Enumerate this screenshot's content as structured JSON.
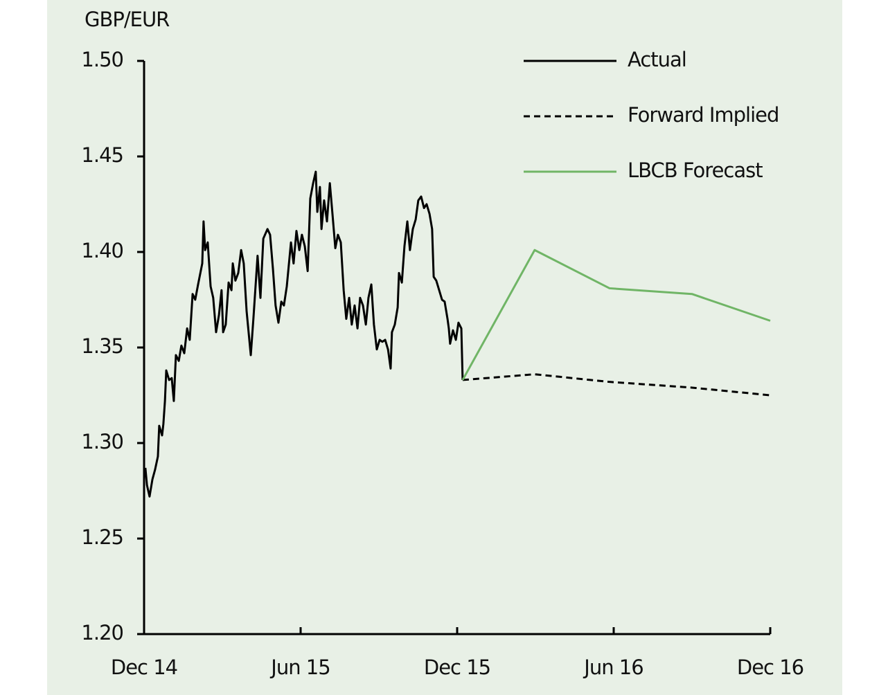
{
  "chart_data": {
    "type": "line",
    "y_label": "GBP/EUR",
    "ylim": [
      1.2,
      1.5
    ],
    "yticks": [
      {
        "value": 1.2,
        "label": "1.20"
      },
      {
        "value": 1.25,
        "label": "1.25"
      },
      {
        "value": 1.3,
        "label": "1.30"
      },
      {
        "value": 1.35,
        "label": "1.35"
      },
      {
        "value": 1.4,
        "label": "1.40"
      },
      {
        "value": 1.45,
        "label": "1.45"
      },
      {
        "value": 1.5,
        "label": "1.50"
      }
    ],
    "xlim": [
      0,
      24
    ],
    "xticks": [
      {
        "value": 0,
        "label": "Dec 14"
      },
      {
        "value": 6,
        "label": "Jun 15"
      },
      {
        "value": 12,
        "label": "Dec 15"
      },
      {
        "value": 18,
        "label": "Jun 16"
      },
      {
        "value": 24,
        "label": "Dec 16"
      }
    ],
    "legend": "top-right",
    "series": [
      {
        "name": "Actual",
        "color": "#000000",
        "dash": false,
        "x": [
          0.05,
          0.11,
          0.21,
          0.32,
          0.42,
          0.53,
          0.58,
          0.69,
          0.74,
          0.8,
          0.85,
          0.96,
          1.06,
          1.14,
          1.22,
          1.33,
          1.43,
          1.54,
          1.65,
          1.75,
          1.86,
          1.96,
          2.07,
          2.23,
          2.28,
          2.34,
          2.44,
          2.55,
          2.65,
          2.76,
          2.87,
          2.97,
          3.03,
          3.13,
          3.24,
          3.35,
          3.4,
          3.5,
          3.61,
          3.72,
          3.82,
          3.93,
          4.09,
          4.19,
          4.35,
          4.46,
          4.57,
          4.73,
          4.83,
          4.94,
          5.04,
          5.15,
          5.26,
          5.36,
          5.47,
          5.63,
          5.73,
          5.84,
          5.95,
          6.05,
          6.16,
          6.27,
          6.37,
          6.48,
          6.58,
          6.64,
          6.74,
          6.8,
          6.9,
          7.01,
          7.12,
          7.22,
          7.33,
          7.43,
          7.54,
          7.65,
          7.75,
          7.86,
          7.96,
          8.07,
          8.18,
          8.28,
          8.39,
          8.5,
          8.6,
          8.71,
          8.81,
          8.92,
          9.03,
          9.13,
          9.24,
          9.35,
          9.45,
          9.5,
          9.61,
          9.72,
          9.77,
          9.88,
          9.98,
          10.09,
          10.19,
          10.3,
          10.41,
          10.51,
          10.62,
          10.73,
          10.83,
          10.94,
          11.04,
          11.1,
          11.2,
          11.31,
          11.42,
          11.52,
          11.63,
          11.68,
          11.73,
          11.84,
          11.95,
          12.05,
          12.16,
          12.21
        ],
        "values": [
          1.287,
          1.278,
          1.272,
          1.281,
          1.286,
          1.293,
          1.309,
          1.304,
          1.31,
          1.322,
          1.338,
          1.333,
          1.334,
          1.322,
          1.346,
          1.343,
          1.351,
          1.347,
          1.36,
          1.354,
          1.378,
          1.375,
          1.383,
          1.394,
          1.416,
          1.401,
          1.405,
          1.382,
          1.376,
          1.358,
          1.367,
          1.38,
          1.358,
          1.362,
          1.384,
          1.38,
          1.394,
          1.385,
          1.389,
          1.401,
          1.394,
          1.369,
          1.346,
          1.365,
          1.398,
          1.376,
          1.407,
          1.412,
          1.409,
          1.391,
          1.372,
          1.363,
          1.374,
          1.372,
          1.382,
          1.405,
          1.394,
          1.411,
          1.401,
          1.409,
          1.403,
          1.39,
          1.428,
          1.436,
          1.442,
          1.421,
          1.434,
          1.412,
          1.427,
          1.416,
          1.436,
          1.42,
          1.402,
          1.409,
          1.405,
          1.38,
          1.365,
          1.376,
          1.362,
          1.372,
          1.36,
          1.376,
          1.372,
          1.362,
          1.376,
          1.383,
          1.362,
          1.349,
          1.354,
          1.353,
          1.354,
          1.349,
          1.339,
          1.358,
          1.362,
          1.371,
          1.389,
          1.384,
          1.403,
          1.416,
          1.401,
          1.412,
          1.417,
          1.427,
          1.429,
          1.423,
          1.425,
          1.42,
          1.412,
          1.387,
          1.385,
          1.38,
          1.375,
          1.374,
          1.365,
          1.36,
          1.352,
          1.359,
          1.354,
          1.363,
          1.36,
          1.333
        ]
      },
      {
        "name": "Forward Implied",
        "color": "#000000",
        "dash": true,
        "x": [
          12.21,
          14.97,
          17.84,
          21.0,
          24.0
        ],
        "values": [
          1.333,
          1.336,
          1.332,
          1.329,
          1.325
        ]
      },
      {
        "name": "LBCB Forecast",
        "color": "#70b566",
        "dash": false,
        "x": [
          12.21,
          14.97,
          17.84,
          21.0,
          24.0
        ],
        "values": [
          1.333,
          1.401,
          1.381,
          1.378,
          1.364
        ]
      }
    ]
  }
}
